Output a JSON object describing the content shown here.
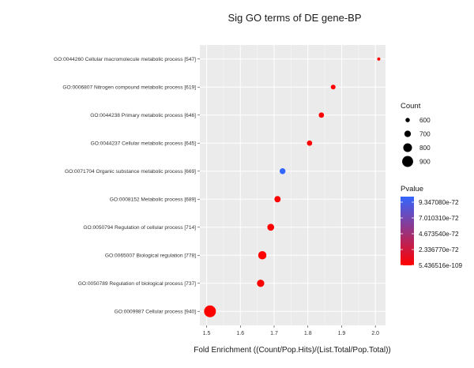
{
  "chart_data": {
    "type": "scatter",
    "title": "Sig GO terms of DE gene-BP",
    "xlabel": "Fold Enrichment ((Count/Pop.Hits)/(List.Total/Pop.Total))",
    "ylabel": "",
    "xlim": [
      1.48,
      2.03
    ],
    "x_ticks": [
      "1.5",
      "1.6",
      "1.7",
      "1.8",
      "1.9",
      "2.0"
    ],
    "grid": true,
    "point_color": "#ff0000",
    "highlight_color": "#3366ff",
    "points": [
      {
        "term": "GO:0044260 Cellular macromolecule metabolic process [547]",
        "x": 2.01,
        "count": 547,
        "pvalue_low": true
      },
      {
        "term": "GO:0006807 Nitrogen compound metabolic process [619]",
        "x": 1.875,
        "count": 619,
        "pvalue_low": true
      },
      {
        "term": "GO:0044238 Primary metabolic process [646]",
        "x": 1.84,
        "count": 646,
        "pvalue_low": true
      },
      {
        "term": "GO:0044237 Cellular metabolic process [645]",
        "x": 1.805,
        "count": 645,
        "pvalue_low": true
      },
      {
        "term": "GO:0071704 Organic substance metabolic process [669]",
        "x": 1.725,
        "count": 669,
        "pvalue_low": false
      },
      {
        "term": "GO:0008152 Metabolic process [689]",
        "x": 1.71,
        "count": 689,
        "pvalue_low": true
      },
      {
        "term": "GO:0050794 Regulation of cellular process [714]",
        "x": 1.69,
        "count": 714,
        "pvalue_low": true
      },
      {
        "term": "GO:0065007 Biological regulation [778]",
        "x": 1.665,
        "count": 778,
        "pvalue_low": true
      },
      {
        "term": "GO:0050789 Regulation of biological process [737]",
        "x": 1.66,
        "count": 737,
        "pvalue_low": true
      },
      {
        "term": "GO:0009987 Cellular process [940]",
        "x": 1.51,
        "count": 940,
        "pvalue_low": true
      }
    ],
    "legend_count": {
      "title": "Count",
      "entries": [
        {
          "label": "600",
          "count": 600
        },
        {
          "label": "700",
          "count": 700
        },
        {
          "label": "800",
          "count": 800
        },
        {
          "label": "900",
          "count": 900
        }
      ]
    },
    "legend_pvalue": {
      "title": "Pvalue",
      "labels": [
        "9.347080e-72",
        "7.010310e-72",
        "4.673540e-72",
        "2.336770e-72",
        "5.436516e-109"
      ],
      "color_high": "#3366ff",
      "color_low": "#ff0000"
    }
  }
}
